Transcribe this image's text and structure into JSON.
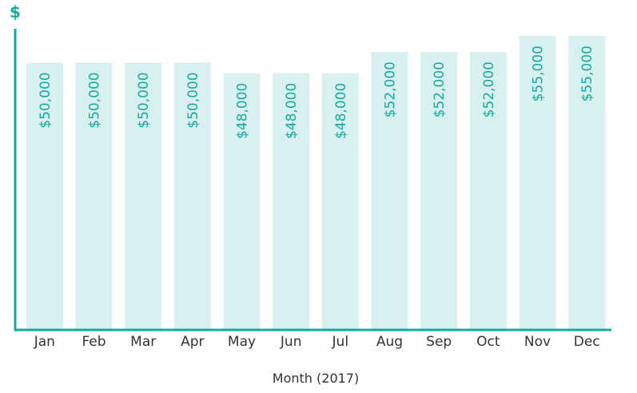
{
  "chart_data": {
    "type": "bar",
    "title": "",
    "xlabel": "Month (2017)",
    "ylabel": "$",
    "categories": [
      "Jan",
      "Feb",
      "Mar",
      "Apr",
      "May",
      "Jun",
      "Jul",
      "Aug",
      "Sep",
      "Oct",
      "Nov",
      "Dec"
    ],
    "values": [
      50000,
      50000,
      50000,
      50000,
      48000,
      48000,
      48000,
      52000,
      52000,
      52000,
      55000,
      55000
    ],
    "value_labels": [
      "$50,000",
      "$50,000",
      "$50,000",
      "$50,000",
      "$48,000",
      "$48,000",
      "$48,000",
      "$52,000",
      "$52,000",
      "$52,000",
      "$55,000",
      "$55,000"
    ],
    "ylim": [
      0,
      58000
    ],
    "grid": false,
    "legend": "none",
    "colors": {
      "bar": "#d9f0f1",
      "axis": "#14ab9d",
      "value_label": "#14ab9d",
      "tick_label": "#333333"
    }
  }
}
